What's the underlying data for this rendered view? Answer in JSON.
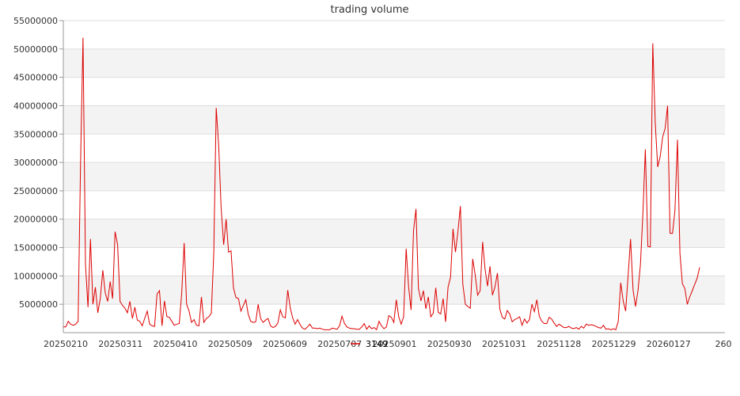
{
  "chart_data": {
    "type": "line",
    "title": "trading volume",
    "xlabel": "",
    "ylabel": "",
    "ylim": [
      0,
      55000000
    ],
    "yticks": [
      5000000,
      10000000,
      15000000,
      20000000,
      25000000,
      30000000,
      35000000,
      40000000,
      45000000,
      50000000,
      55000000
    ],
    "ytick_labels": [
      "5000000",
      "10000000",
      "15000000",
      "20000000",
      "25000000",
      "30000000",
      "35000000",
      "40000000",
      "45000000",
      "50000000",
      "55000000"
    ],
    "xtick_labels": [
      "20250210",
      "20250311",
      "20250410",
      "20250509",
      "20250609",
      "20250707",
      "20250901",
      "20250930",
      "20251031",
      "20251128",
      "20251229",
      "20260127",
      "260"
    ],
    "grid": true,
    "banded_background": true,
    "legend_position": "bottom-center",
    "series": [
      {
        "name": "3149",
        "color": "#dd0000",
        "values": [
          1000000,
          1000000,
          2000000,
          1500000,
          1300000,
          1500000,
          2000000,
          30000000,
          52000000,
          12000000,
          4500000,
          16500000,
          5000000,
          8000000,
          3500000,
          6000000,
          11000000,
          7000000,
          5500000,
          9000000,
          6000000,
          17800000,
          15500000,
          5500000,
          4800000,
          4300000,
          3500000,
          5500000,
          2500000,
          4500000,
          2200000,
          2000000,
          1200000,
          2500000,
          3800000,
          1500000,
          1200000,
          1100000,
          6800000,
          7400000,
          1200000,
          5600000,
          2800000,
          2700000,
          2000000,
          1300000,
          1500000,
          1600000,
          7000000,
          15800000,
          5000000,
          3800000,
          1800000,
          2300000,
          1300000,
          1200000,
          6300000,
          1800000,
          2500000,
          2800000,
          3400000,
          14000000,
          39600000,
          33000000,
          22000000,
          15500000,
          20000000,
          14200000,
          14400000,
          7900000,
          6200000,
          6000000,
          3800000,
          4800000,
          5800000,
          3200000,
          2000000,
          1800000,
          1900000,
          5000000,
          2500000,
          1800000,
          2200000,
          2500000,
          1200000,
          900000,
          1100000,
          1700000,
          4000000,
          2800000,
          2600000,
          7500000,
          4400000,
          2600000,
          1500000,
          2300000,
          1400000,
          800000,
          600000,
          1000000,
          1500000,
          800000,
          800000,
          700000,
          800000,
          600000,
          500000,
          500000,
          500000,
          800000,
          700000,
          600000,
          1200000,
          2900000,
          1600000,
          1000000,
          800000,
          700000,
          700000,
          600000,
          600000,
          1000000,
          1600000,
          600000,
          1200000,
          700000,
          900000,
          500000,
          2000000,
          1200000,
          700000,
          1000000,
          3000000,
          2700000,
          1800000,
          5800000,
          2800000,
          1500000,
          2800000,
          14800000,
          8000000,
          4000000,
          18000000,
          21800000,
          7800000,
          5600000,
          7400000,
          4200000,
          6300000,
          2800000,
          3400000,
          7900000,
          3600000,
          3300000,
          6000000,
          1900000,
          8000000,
          9800000,
          18300000,
          14200000,
          17800000,
          22300000,
          8500000,
          5000000,
          4600000,
          4300000,
          13000000,
          10200000,
          6600000,
          7400000,
          16000000,
          11200000,
          8200000,
          11700000,
          6600000,
          8000000,
          10500000,
          4100000,
          2700000,
          2400000,
          3900000,
          3300000,
          1900000,
          2300000,
          2500000,
          2800000,
          1300000,
          2400000,
          1700000,
          2300000,
          5000000,
          3700000,
          5800000,
          2900000,
          2000000,
          1600000,
          1600000,
          2700000,
          2400000,
          1700000,
          1100000,
          1500000,
          1200000,
          900000,
          900000,
          1100000,
          800000,
          700000,
          900000,
          600000,
          1100000,
          800000,
          1500000,
          1300000,
          1400000,
          1300000,
          1100000,
          900000,
          800000,
          1300000,
          600000,
          700000,
          500000,
          700000,
          500000,
          2000000,
          8800000,
          5600000,
          3800000,
          10000000,
          16500000,
          7500000,
          4600000,
          7400000,
          12000000,
          21000000,
          32300000,
          15200000,
          15100000,
          51000000,
          37000000,
          29200000,
          31000000,
          34500000,
          36000000,
          40000000,
          17500000,
          17500000,
          21500000,
          34000000,
          14000000,
          8600000,
          7800000,
          5000000,
          6300000,
          7400000,
          8500000,
          9600000,
          11500000
        ]
      }
    ]
  }
}
